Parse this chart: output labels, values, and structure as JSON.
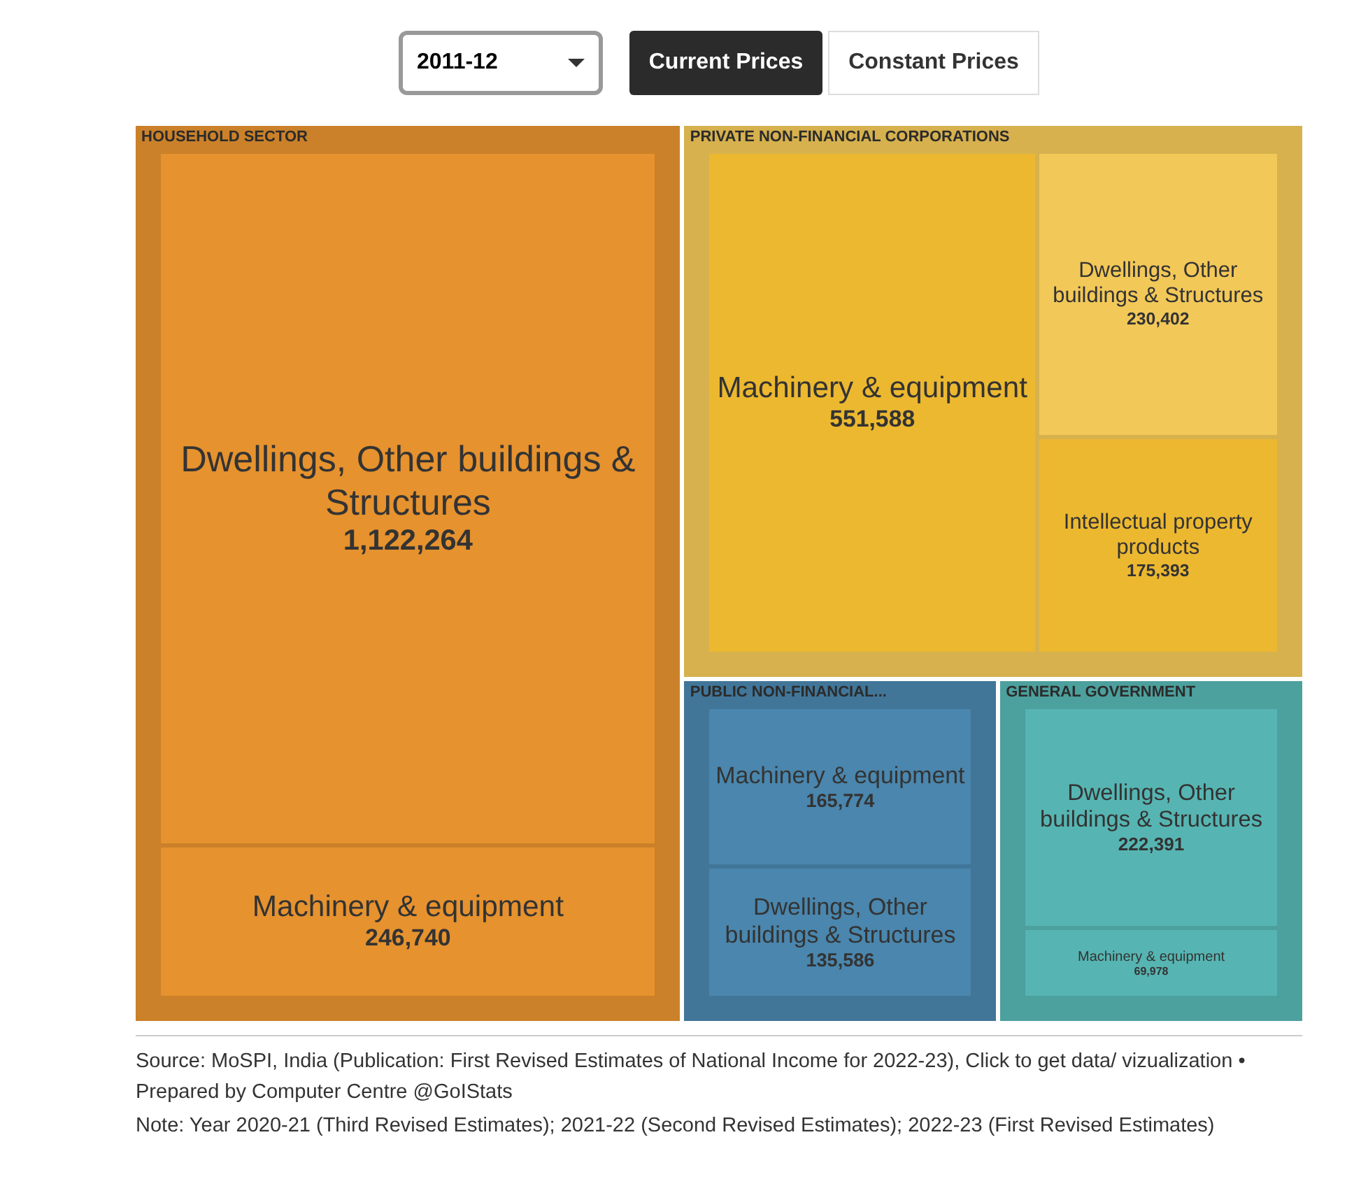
{
  "chart_data": {
    "type": "other",
    "categories": [
      "Dwellings, Other buildings & Structures",
      "Machinery & equipment",
      "Intellectual property products"
    ],
    "series": [
      {
        "name": "HOUSEHOLD SECTOR",
        "colors": [
          "#e6922e",
          "#e6922e",
          null
        ],
        "values": [
          1122264,
          246740,
          null
        ],
        "value_labels": [
          "1,122,264",
          "246,740",
          null
        ]
      },
      {
        "name": "PRIVATE NON-FINANCIAL CORPORATIONS",
        "colors": [
          "#f2c858",
          "#ecb830",
          "#ecb830"
        ],
        "values": [
          230402,
          551588,
          175393
        ],
        "value_labels": [
          "230,402",
          "551,588",
          "175,393"
        ]
      },
      {
        "name": "PUBLIC NON-FINANCIAL...",
        "colors": [
          "#4a86ad",
          "#4a86ad",
          null
        ],
        "values": [
          135586,
          165774,
          null
        ],
        "value_labels": [
          "135,586",
          "165,774",
          null
        ]
      },
      {
        "name": "GENERAL GOVERNMENT",
        "colors": [
          "#56b5b2",
          "#56b5b2",
          null
        ],
        "values": [
          222391,
          69978,
          null
        ],
        "value_labels": [
          "222,391",
          "69,978",
          null
        ]
      }
    ],
    "annotations": [
      "2011-12",
      "Current Prices",
      "Constant Prices",
      "Source: MoSPI, India (Publication: First Revised Estimates of National Income for 2022-23), Click to get data/ vizualization • Prepared by Computer Centre @GoIStats",
      "Note: Year 2020-21 (Third Revised Estimates); 2021-22 (Second Revised Estimates); 2022-23 (First Revised Estimates)"
    ]
  }
}
